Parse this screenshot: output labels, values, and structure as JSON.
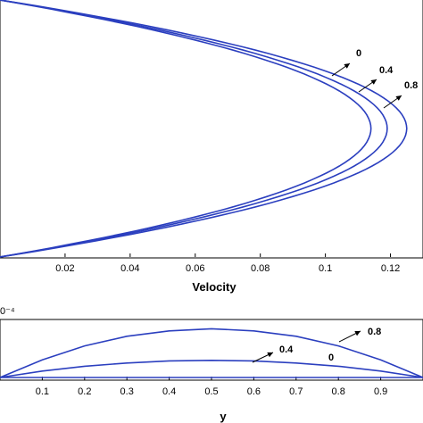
{
  "chart_data": [
    {
      "type": "line",
      "xlabel": "Velocity",
      "xlim": [
        0.0,
        0.13
      ],
      "ylim": [
        -1,
        1
      ],
      "xticks": [
        0.02,
        0.04,
        0.06,
        0.08,
        0.1,
        0.12
      ],
      "series": [
        {
          "name": "0",
          "peak": 0.114
        },
        {
          "name": "0.4",
          "peak": 0.119
        },
        {
          "name": "0.8",
          "peak": 0.125
        }
      ],
      "annotations": [
        "0",
        "0.4",
        "0.8"
      ]
    },
    {
      "type": "line",
      "xlabel": "y",
      "exponent_label": "0⁻⁴",
      "xlim": [
        0.0,
        1.0
      ],
      "ylim": [
        0,
        1
      ],
      "xticks": [
        0.1,
        0.2,
        0.3,
        0.4,
        0.5,
        0.6,
        0.7,
        0.8,
        0.9
      ],
      "x": [
        0.0,
        0.1,
        0.2,
        0.3,
        0.4,
        0.5,
        0.6,
        0.7,
        0.8,
        0.9,
        1.0
      ],
      "series": [
        {
          "name": "0",
          "values": [
            0,
            0,
            0,
            0,
            0,
            0,
            0,
            0,
            0,
            0,
            0
          ]
        },
        {
          "name": "0.4",
          "values": [
            0,
            0.12,
            0.21,
            0.27,
            0.31,
            0.32,
            0.31,
            0.27,
            0.21,
            0.12,
            0
          ]
        },
        {
          "name": "0.8",
          "values": [
            0,
            0.33,
            0.59,
            0.77,
            0.87,
            0.91,
            0.87,
            0.77,
            0.59,
            0.33,
            0
          ]
        }
      ],
      "annotations": [
        "0",
        "0.4",
        "0.8"
      ]
    }
  ]
}
